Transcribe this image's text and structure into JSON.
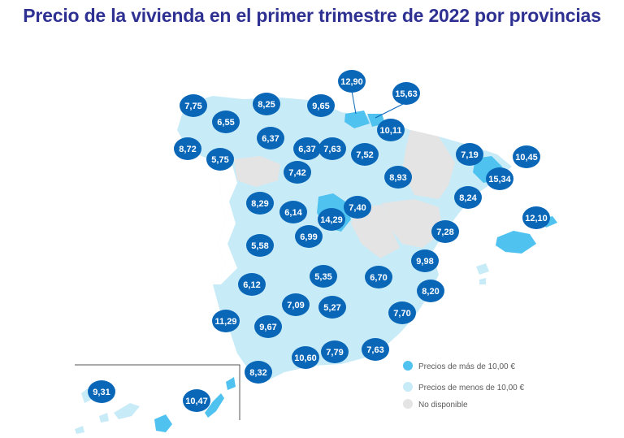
{
  "title": "Precio de la vivienda en el primer trimestre de 2022 por provincias",
  "colors": {
    "high": "#4fc2f0",
    "low": "#c8ebf8",
    "na": "#e4e4e4",
    "bubble": "#0a67b8",
    "title": "#2e3192"
  },
  "legend": [
    {
      "label": "Precios de más de 10,00 €",
      "category": "high"
    },
    {
      "label": "Precios de menos de 10,00 €",
      "category": "low"
    },
    {
      "label": "No disponible",
      "category": "na"
    }
  ],
  "prices": [
    "7,75",
    "8,25",
    "9,65",
    "12,90",
    "15,63",
    "6,55",
    "10,11",
    "6,37",
    "8,72",
    "5,75",
    "6,37",
    "7,63",
    "7,52",
    "7,19",
    "10,45",
    "7,42",
    "8,93",
    "15,34",
    "8,24",
    "8,29",
    "6,14",
    "7,40",
    "14,29",
    "12,10",
    "6,99",
    "7,28",
    "5,58",
    "9,98",
    "5,35",
    "6,70",
    "6,12",
    "8,20",
    "7,09",
    "5,27",
    "11,29",
    "9,67",
    "7,70",
    "10,60",
    "7,79",
    "7,63",
    "8,32",
    "9,31",
    "10,47"
  ]
}
